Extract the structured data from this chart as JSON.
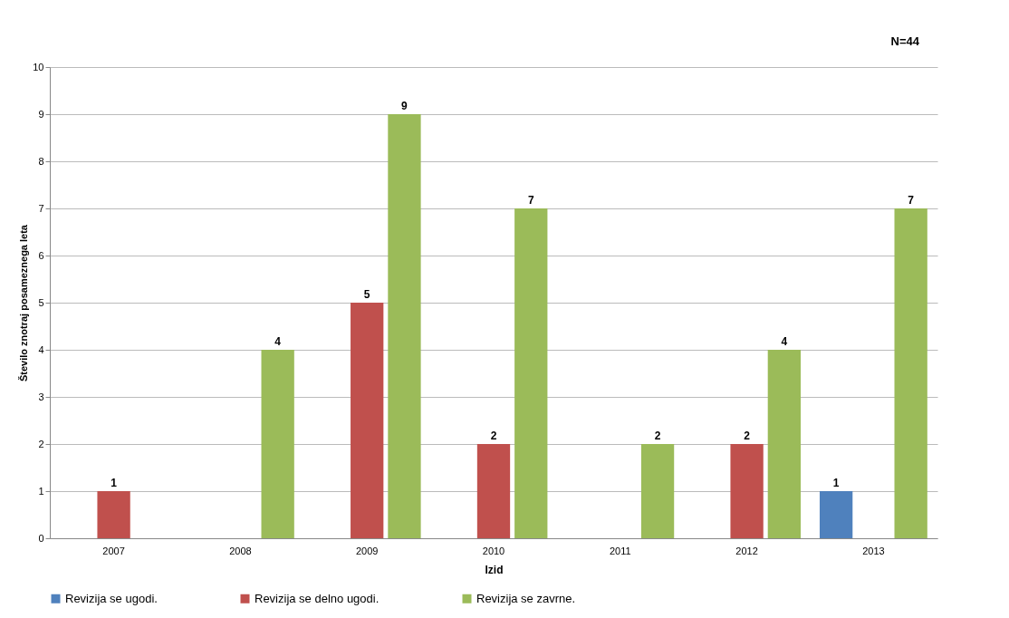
{
  "chart_data": {
    "type": "bar",
    "xlabel": "Izid",
    "ylabel": "Število znotraj posameznega leta",
    "annotations": [
      "N=44"
    ],
    "categories": [
      "2007",
      "2008",
      "2009",
      "2010",
      "2011",
      "2012",
      "2013"
    ],
    "series": [
      {
        "name": "Revizija se ugodi.",
        "color": "#4f81bd",
        "values": [
          null,
          null,
          null,
          null,
          null,
          null,
          1
        ]
      },
      {
        "name": "Revizija se delno ugodi.",
        "color": "#c0504d",
        "values": [
          1,
          null,
          5,
          2,
          null,
          2,
          null
        ]
      },
      {
        "name": "Revizija se zavrne.",
        "color": "#9bbb59",
        "values": [
          null,
          4,
          9,
          7,
          2,
          4,
          7
        ]
      }
    ],
    "ylim": [
      0,
      10
    ],
    "yticks": [
      0,
      1,
      2,
      3,
      4,
      5,
      6,
      7,
      8,
      9,
      10
    ],
    "grid": "y",
    "legend": "bottom",
    "data_labels": true
  }
}
